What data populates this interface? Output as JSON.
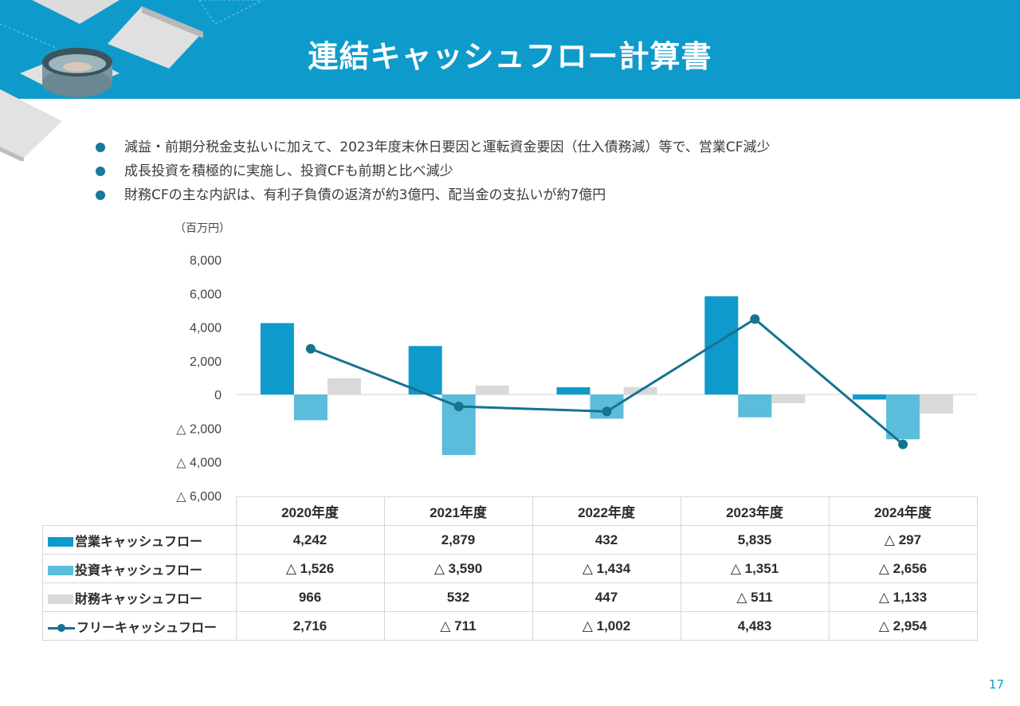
{
  "page": {
    "title": "連結キャッシュフロー計算書",
    "bullets": [
      "減益・前期分税金支払いに加えて、2023年度末休日要因と運転資金要因（仕入債務減）等で、営業CF減少",
      "成長投資を積極的に実施し、投資CFも前期と比べ減少",
      "財務CFの主な内訳は、有利子負債の返済が約3億円、配当金の支払いが約7億円"
    ],
    "page_number": "17"
  },
  "colors": {
    "header": "#0e9bcb",
    "operating": "#0e9bcb",
    "investing": "#5bbcdc",
    "financing": "#d9d9d9",
    "free": "#157390"
  },
  "chart_data": {
    "type": "bar",
    "unit_label": "（百万円）",
    "categories": [
      "2020年度",
      "2021年度",
      "2022年度",
      "2023年度",
      "2024年度"
    ],
    "ylim": [
      -6000,
      8000
    ],
    "y_ticks": [
      8000,
      6000,
      4000,
      2000,
      0,
      -2000,
      -4000,
      -6000
    ],
    "y_tick_labels": [
      "8,000",
      "6,000",
      "4,000",
      "2,000",
      "0",
      "△ 2,000",
      "△ 4,000",
      "△ 6,000"
    ],
    "grid": false,
    "legend": "table-below",
    "series": [
      {
        "name": "営業キャッシュフロー",
        "kind": "bar",
        "color": "#0e9bcb",
        "values": [
          4242,
          2879,
          432,
          5835,
          -297
        ],
        "labels": [
          "4,242",
          "2,879",
          "432",
          "5,835",
          "△ 297"
        ]
      },
      {
        "name": "投資キャッシュフロー",
        "kind": "bar",
        "color": "#5bbcdc",
        "values": [
          -1526,
          -3590,
          -1434,
          -1351,
          -2656
        ],
        "labels": [
          "△ 1,526",
          "△ 3,590",
          "△ 1,434",
          "△ 1,351",
          "△ 2,656"
        ]
      },
      {
        "name": "財務キャッシュフロー",
        "kind": "bar",
        "color": "#d9d9d9",
        "values": [
          966,
          532,
          447,
          -511,
          -1133
        ],
        "labels": [
          "966",
          "532",
          "447",
          "△ 511",
          "△ 1,133"
        ]
      },
      {
        "name": "フリーキャッシュフロー",
        "kind": "line",
        "color": "#157390",
        "values": [
          2716,
          -711,
          -1002,
          4483,
          -2954
        ],
        "labels": [
          "2,716",
          "△ 711",
          "△ 1,002",
          "4,483",
          "△ 2,954"
        ]
      }
    ]
  }
}
